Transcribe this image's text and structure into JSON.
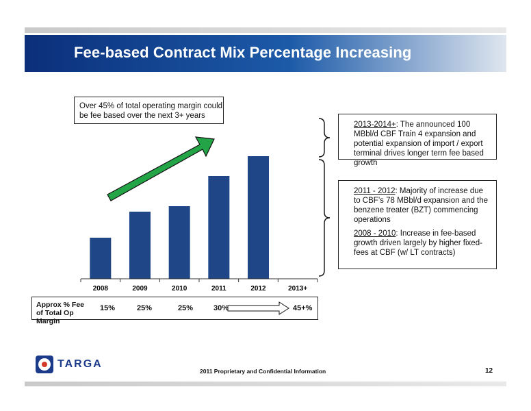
{
  "title": "Fee-based Contract Mix Percentage Increasing",
  "callout_main": "Over 45% of total operating margin could be fee based over the next 3+ years",
  "callout_2013": {
    "lead": "2013-2014+",
    "text": ": The announced 100 MBbl/d CBF Train 4 expansion and potential expansion of import / export terminal drives longer term fee based growth"
  },
  "callout_2011": {
    "lead": "2011 - 2012",
    "text": ":  Majority of increase due to CBF’s 78 MBbl/d expansion and the benzene treater (BZT) commencing operations"
  },
  "callout_2008": {
    "lead": "2008 - 2010",
    "text": ":  Increase in fee-based growth driven largely by higher fixed-fees at CBF (w/ LT contracts)"
  },
  "fee_row": {
    "label": "Approx % Fee of Total Op Margin",
    "values": [
      "15%",
      "25%",
      "25%",
      "30%",
      "45+%"
    ]
  },
  "chart_data": {
    "type": "bar",
    "categories": [
      "2008",
      "2009",
      "2010",
      "2011",
      "2012",
      "2013+"
    ],
    "values": [
      60,
      98,
      106,
      150,
      179,
      null
    ],
    "title": "",
    "xlabel": "",
    "ylabel": "",
    "ylim": [
      0,
      200
    ],
    "colors": {
      "bar": "#1f4788",
      "arrow": "#1e9e3e"
    }
  },
  "brand": "TARGA",
  "footer": "2011 Proprietary and Confidential Information",
  "page_number": "12"
}
